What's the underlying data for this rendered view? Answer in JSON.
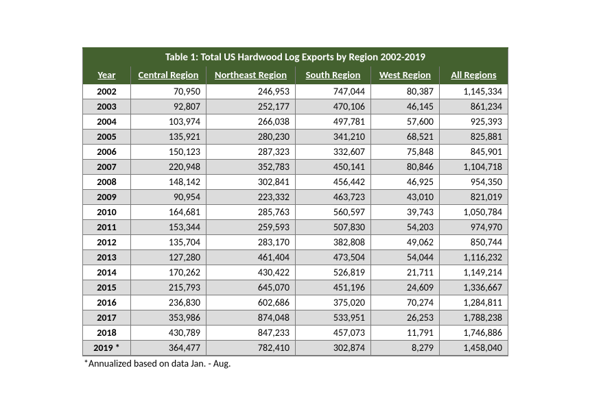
{
  "table": {
    "title": "Table 1: Total US Hardwood Log Exports by Region 2002-2019",
    "columns": [
      "Year",
      "Central Region",
      "Northeast Region",
      "South Region",
      "West Region",
      "All Regions"
    ],
    "rows": [
      [
        "2002",
        "70,950",
        "246,953",
        "747,044",
        "80,387",
        "1,145,334"
      ],
      [
        "2003",
        "92,807",
        "252,177",
        "470,106",
        "46,145",
        "861,234"
      ],
      [
        "2004",
        "103,974",
        "266,038",
        "497,781",
        "57,600",
        "925,393"
      ],
      [
        "2005",
        "135,921",
        "280,230",
        "341,210",
        "68,521",
        "825,881"
      ],
      [
        "2006",
        "150,123",
        "287,323",
        "332,607",
        "75,848",
        "845,901"
      ],
      [
        "2007",
        "220,948",
        "352,783",
        "450,141",
        "80,846",
        "1,104,718"
      ],
      [
        "2008",
        "148,142",
        "302,841",
        "456,442",
        "46,925",
        "954,350"
      ],
      [
        "2009",
        "90,954",
        "223,332",
        "463,723",
        "43,010",
        "821,019"
      ],
      [
        "2010",
        "164,681",
        "285,763",
        "560,597",
        "39,743",
        "1,050,784"
      ],
      [
        "2011",
        "153,344",
        "259,593",
        "507,830",
        "54,203",
        "974,970"
      ],
      [
        "2012",
        "135,704",
        "283,170",
        "382,808",
        "49,062",
        "850,744"
      ],
      [
        "2013",
        "127,280",
        "461,404",
        "473,504",
        "54,044",
        "1,116,232"
      ],
      [
        "2014",
        "170,262",
        "430,422",
        "526,819",
        "21,711",
        "1,149,214"
      ],
      [
        "2015",
        "215,793",
        "645,070",
        "451,196",
        "24,609",
        "1,336,667"
      ],
      [
        "2016",
        "236,830",
        "602,686",
        "375,020",
        "70,274",
        "1,284,811"
      ],
      [
        "2017",
        "353,986",
        "874,048",
        "533,951",
        "26,253",
        "1,788,238"
      ],
      [
        "2018",
        "430,789",
        "847,233",
        "457,073",
        "11,791",
        "1,746,886"
      ],
      [
        "2019 *",
        "364,477",
        "782,410",
        "302,874",
        "8,279",
        "1,458,040"
      ]
    ],
    "footnote": "*Annualized based on data Jan. - Aug.",
    "colors": {
      "header_bg": "#44612f",
      "header_fg": "#ffffff",
      "row_even_bg": "#ffffff",
      "row_odd_bg": "#dcdcdc",
      "border": "#7a7a7a"
    }
  }
}
